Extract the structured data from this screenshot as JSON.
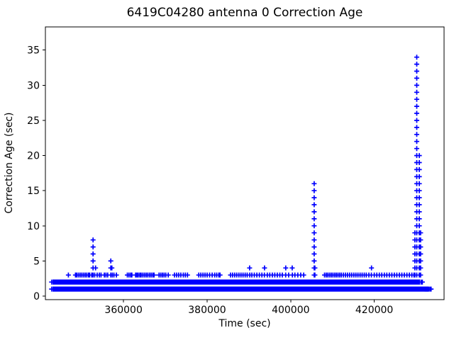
{
  "chart_data": {
    "type": "scatter",
    "title": "6419C04280 antenna 0 Correction Age",
    "xlabel": "Time (sec)",
    "ylabel": "Correction Age (sec)",
    "marker": "+",
    "marker_color": "#0000FF",
    "background_color": "#FFFFFF",
    "axis_color": "#000000",
    "grid": false,
    "legend": null,
    "xlim": [
      341300,
      436700
    ],
    "ylim": [
      -0.5,
      38.3
    ],
    "xticks": [
      360000,
      380000,
      400000,
      420000
    ],
    "yticks": [
      0,
      5,
      10,
      15,
      20,
      25,
      30,
      35
    ],
    "bands": [
      {
        "y": 1,
        "t_start": 343000,
        "t_end": 433000
      },
      {
        "y": 2,
        "t_start": 343000,
        "t_end": 431000
      }
    ],
    "band_edge_points": [
      [
        342800,
        1
      ],
      [
        342800,
        2
      ],
      [
        431250,
        2
      ],
      [
        431500,
        2
      ],
      [
        432200,
        1
      ],
      [
        432600,
        1
      ],
      [
        433000,
        1
      ],
      [
        433300,
        1
      ],
      [
        433600,
        1
      ]
    ],
    "y3_times": [
      346800,
      348500,
      348800,
      349200,
      349600,
      350000,
      350400,
      350800,
      351200,
      351600,
      351900,
      352400,
      352700,
      353100,
      353700,
      354200,
      354600,
      355400,
      355800,
      356200,
      356950,
      357300,
      357700,
      358300,
      360900,
      361300,
      361700,
      362000,
      362900,
      363200,
      363500,
      363900,
      364200,
      364600,
      365000,
      365400,
      365800,
      366200,
      366600,
      367000,
      367300,
      368500,
      368900,
      369300,
      369700,
      370100,
      370700,
      372200,
      372700,
      373200,
      373700,
      374300,
      374800,
      375300,
      378000,
      378500,
      379000,
      379500,
      380000,
      380600,
      381200,
      381800,
      382300,
      382800,
      383100,
      385600,
      386100,
      386600,
      387100,
      387600,
      388100,
      388600,
      389100,
      389600,
      390200,
      390700,
      391300,
      391900,
      392500,
      393100,
      393700,
      394400,
      395000,
      395600,
      396200,
      396800,
      397400,
      398000,
      398800,
      399500,
      400400,
      401000,
      401700,
      402400,
      403100,
      405620,
      408100,
      408500,
      408900,
      409300,
      409700,
      410100,
      410500,
      410900,
      411300,
      411700,
      412100,
      412600,
      413100,
      413600,
      414100,
      414600,
      415100,
      415600,
      416100,
      416600,
      417100,
      417600,
      418100,
      418700,
      419300,
      420000,
      420600,
      421200,
      421800,
      422400,
      423000,
      423600,
      424200,
      424800,
      425400,
      426000,
      426600,
      427200,
      427800,
      428400,
      429000,
      429500
    ],
    "y4_times": [
      353300,
      357200,
      390170,
      393730,
      398820,
      400350,
      419330
    ],
    "spikes": [
      {
        "t": 352700,
        "v_min": 3,
        "v_max": 8
      },
      {
        "t": 356950,
        "v_min": 3,
        "v_max": 5
      },
      {
        "t": 405620,
        "v_min": 3,
        "v_max": 16
      },
      {
        "t": 405790,
        "v_min": 3,
        "v_max": 4
      },
      {
        "t": 429700,
        "v_min": 3,
        "v_max": 9
      },
      {
        "t": 430170,
        "v_min": 3,
        "v_max": 34
      },
      {
        "t": 430770,
        "v_min": 3,
        "v_max": 20
      },
      {
        "t": 431080,
        "v_min": 3,
        "v_max": 9
      }
    ]
  }
}
